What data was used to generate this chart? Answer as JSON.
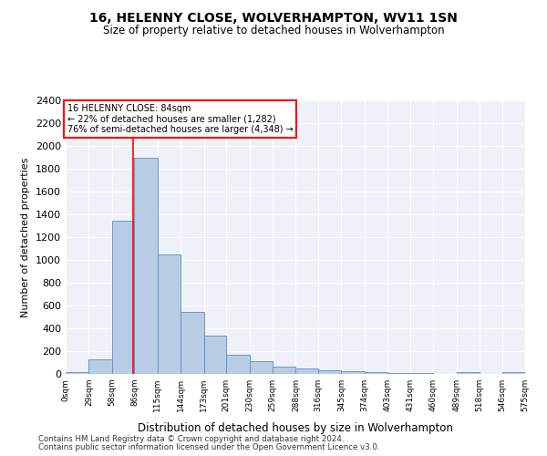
{
  "title": "16, HELENNY CLOSE, WOLVERHAMPTON, WV11 1SN",
  "subtitle": "Size of property relative to detached houses in Wolverhampton",
  "xlabel": "Distribution of detached houses by size in Wolverhampton",
  "ylabel": "Number of detached properties",
  "bar_color": "#b8cce4",
  "bar_edge_color": "#5b8cc8",
  "bin_edges": [
    0,
    29,
    58,
    86,
    115,
    144,
    173,
    201,
    230,
    259,
    288,
    316,
    345,
    374,
    403,
    431,
    460,
    489,
    518,
    546,
    575
  ],
  "bar_heights": [
    15,
    130,
    1345,
    1900,
    1045,
    545,
    340,
    170,
    110,
    65,
    45,
    30,
    25,
    20,
    10,
    5,
    0,
    20,
    0,
    15
  ],
  "x_tick_labels": [
    "0sqm",
    "29sqm",
    "58sqm",
    "86sqm",
    "115sqm",
    "144sqm",
    "173sqm",
    "201sqm",
    "230sqm",
    "259sqm",
    "288sqm",
    "316sqm",
    "345sqm",
    "374sqm",
    "403sqm",
    "431sqm",
    "460sqm",
    "489sqm",
    "518sqm",
    "546sqm",
    "575sqm"
  ],
  "red_line_x": 84,
  "ylim": [
    0,
    2400
  ],
  "yticks": [
    0,
    200,
    400,
    600,
    800,
    1000,
    1200,
    1400,
    1600,
    1800,
    2000,
    2200,
    2400
  ],
  "annotation_line1": "16 HELENNY CLOSE: 84sqm",
  "annotation_line2": "← 22% of detached houses are smaller (1,282)",
  "annotation_line3": "76% of semi-detached houses are larger (4,348) →",
  "annotation_box_color": "white",
  "annotation_box_edge": "red",
  "footer1": "Contains HM Land Registry data © Crown copyright and database right 2024.",
  "footer2": "Contains public sector information licensed under the Open Government Licence v3.0.",
  "background_color": "#eef2f8"
}
